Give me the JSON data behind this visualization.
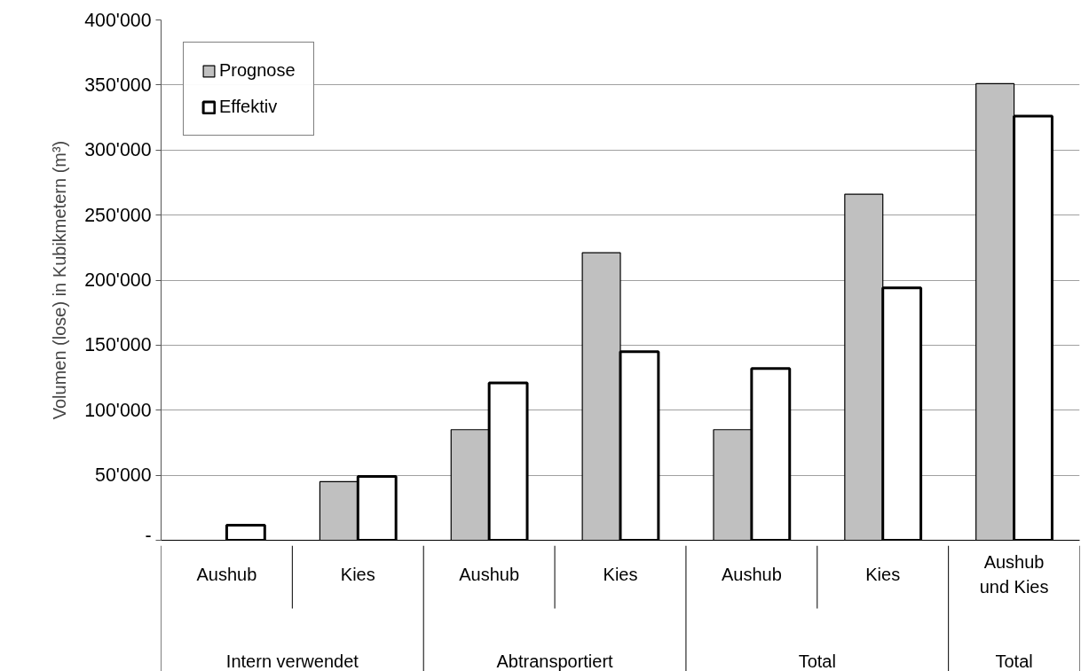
{
  "chart_data": {
    "type": "bar",
    "ylabel": "Volumen (lose) in Kubikmetern (m³)",
    "categories": [
      "Aushub",
      "Kies",
      "Aushub",
      "Kies",
      "Aushub",
      "Kies",
      "Aushub\nund Kies"
    ],
    "annotations": [
      "Intern verwendet",
      "Abtransportiert",
      "Total",
      "Total"
    ],
    "series": [
      {
        "name": "Prognose",
        "color": "#c0c0c0",
        "values": [
          null,
          45000,
          85000,
          221000,
          85000,
          266000,
          351000
        ]
      },
      {
        "name": "Effektiv",
        "color": "#ffffff",
        "values": [
          11500,
          49000,
          121000,
          145000,
          132000,
          194000,
          326000
        ]
      }
    ],
    "ylim": [
      0,
      400000
    ],
    "yticks": [
      {
        "value": 0,
        "label": "-"
      },
      {
        "value": 50000,
        "label": "50'000"
      },
      {
        "value": 100000,
        "label": "100'000"
      },
      {
        "value": 150000,
        "label": "150'000"
      },
      {
        "value": 200000,
        "label": "200'000"
      },
      {
        "value": 250000,
        "label": "250'000"
      },
      {
        "value": 300000,
        "label": "300'000"
      },
      {
        "value": 350000,
        "label": "350'000"
      },
      {
        "value": 400000,
        "label": "400'000"
      }
    ],
    "grid": "y",
    "legend": "top left"
  }
}
